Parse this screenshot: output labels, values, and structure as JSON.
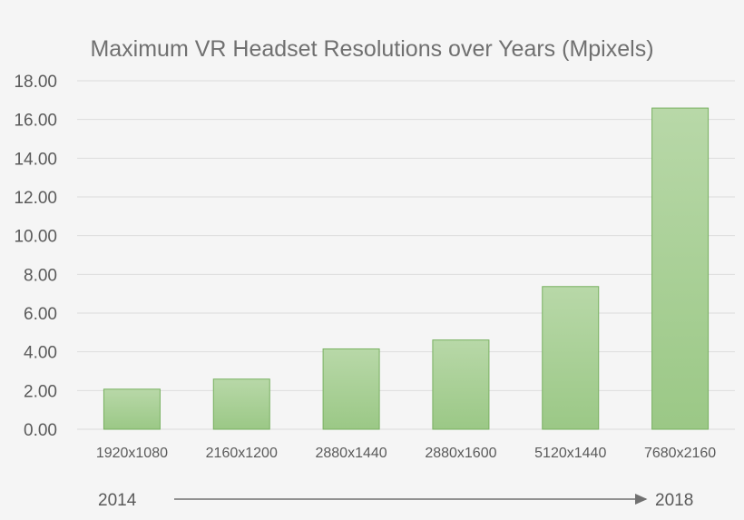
{
  "chart_data": {
    "type": "bar",
    "title": "Maximum VR Headset Resolutions over Years (Mpixels)",
    "xlabel": "",
    "ylabel": "",
    "categories": [
      "1920x1080",
      "2160x1200",
      "2880x1440",
      "2880x1600",
      "5120x1440",
      "7680x2160"
    ],
    "values": [
      2.07,
      2.59,
      4.15,
      4.61,
      7.37,
      16.59
    ],
    "ylim": [
      0,
      18
    ],
    "yticks": [
      "0.00",
      "2.00",
      "4.00",
      "6.00",
      "8.00",
      "10.00",
      "12.00",
      "14.00",
      "16.00",
      "18.00"
    ],
    "grid": true,
    "legend": "none",
    "colors": {
      "bar_top": "#b8d8a8",
      "bar_bottom": "#9bc886",
      "bar_border": "#78b060",
      "grid": "#dcdcdc"
    },
    "timeline": {
      "start": "2014",
      "end": "2018"
    }
  }
}
